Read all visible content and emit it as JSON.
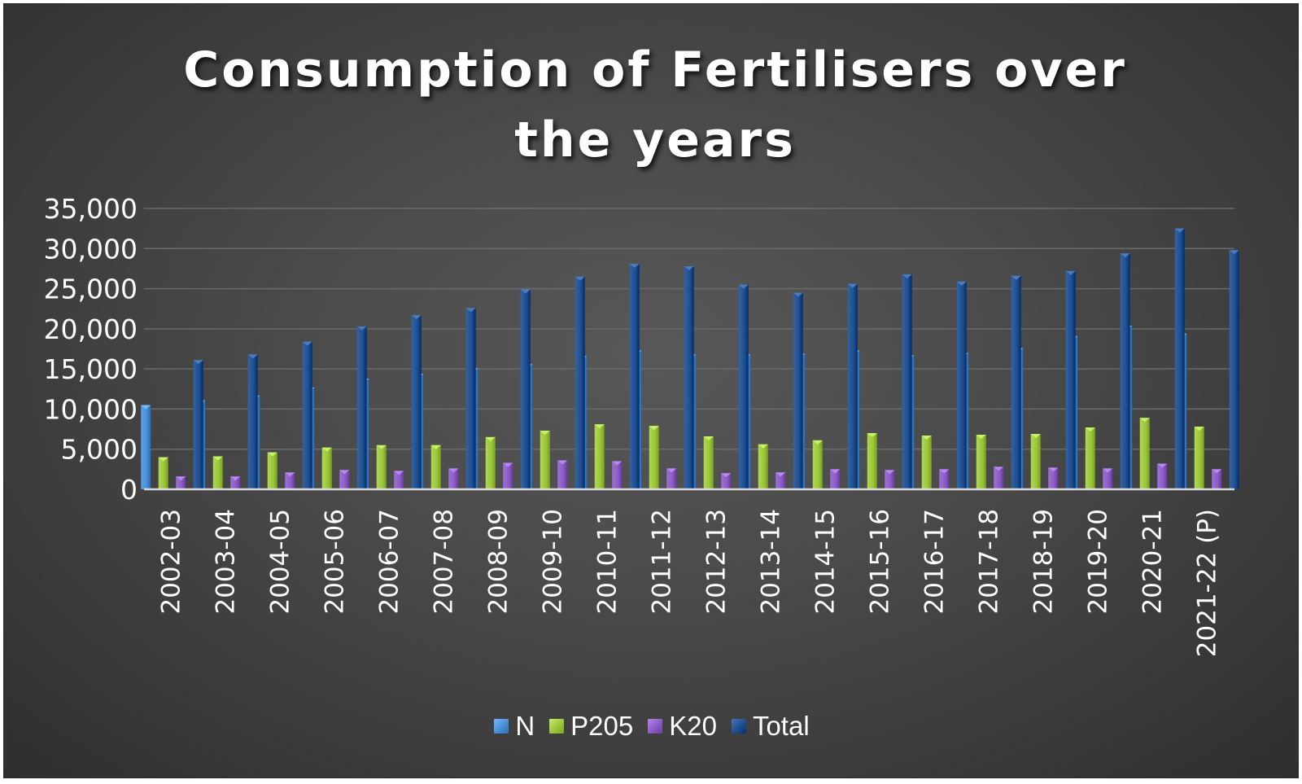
{
  "chart_data": {
    "type": "bar",
    "title": "Consumption of Fertilisers over the years",
    "xlabel": "",
    "ylabel": "",
    "ylim": [
      0,
      35000
    ],
    "yticks": [
      0,
      5000,
      10000,
      15000,
      20000,
      25000,
      30000,
      35000
    ],
    "ytick_labels": [
      "0",
      "5,000",
      "10,000",
      "15,000",
      "20,000",
      "25,000",
      "30,000",
      "35,000"
    ],
    "grid": true,
    "legend_position": "bottom",
    "categories": [
      "2002-03",
      "2003-04",
      "2004-05",
      "2005-06",
      "2006-07",
      "2007-08",
      "2008-09",
      "2009-10",
      "2010-11",
      "2011-12",
      "2012-13",
      "2013-14",
      "2014-15",
      "2015-16",
      "2016-17",
      "2017-18",
      "2018-19",
      "2019-20",
      "2020-21",
      "2021-22 (P)"
    ],
    "series": [
      {
        "name": "N",
        "color": "#4a8fd6",
        "values": [
          10500,
          11100,
          11700,
          12700,
          13800,
          14400,
          15100,
          15600,
          16600,
          17300,
          16800,
          16800,
          16900,
          17300,
          16700,
          17000,
          17600,
          19100,
          20400,
          19400
        ]
      },
      {
        "name": "P205",
        "color": "#9bc53d",
        "values": [
          4000,
          4100,
          4600,
          5200,
          5500,
          5500,
          6500,
          7300,
          8100,
          7900,
          6600,
          5600,
          6100,
          7000,
          6700,
          6800,
          6900,
          7700,
          8900,
          7800
        ]
      },
      {
        "name": "K20",
        "color": "#8a5cc4",
        "values": [
          1600,
          1600,
          2100,
          2400,
          2300,
          2600,
          3300,
          3600,
          3500,
          2600,
          2000,
          2100,
          2500,
          2400,
          2500,
          2800,
          2700,
          2600,
          3200,
          2500
        ]
      },
      {
        "name": "Total",
        "color": "#1f4f8f",
        "values": [
          16100,
          16800,
          18400,
          20300,
          21700,
          22600,
          24900,
          26500,
          28100,
          27800,
          25500,
          24500,
          25600,
          26800,
          25900,
          26600,
          27200,
          29400,
          32500,
          29800
        ]
      }
    ]
  }
}
